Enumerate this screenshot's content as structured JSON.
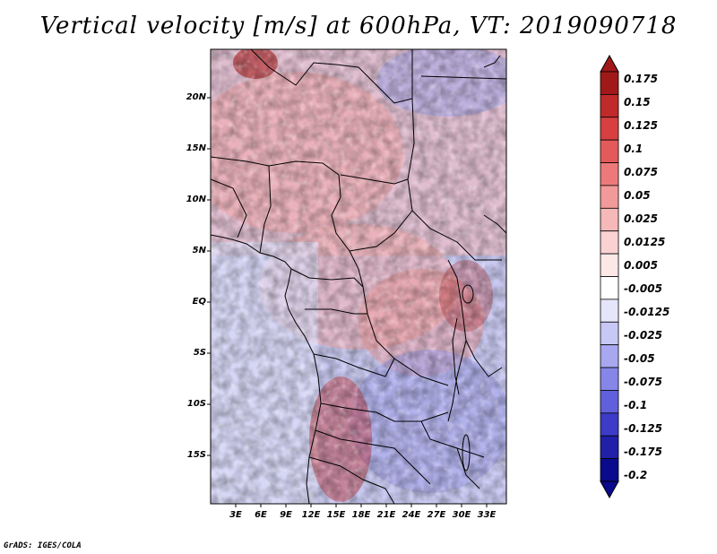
{
  "title": "Vertical velocity [m/s] at 600hPa, VT: 2019090718",
  "credit": "GrADS: IGES/COLA",
  "latitude_labels": [
    "20N",
    "15N",
    "10N",
    "5N",
    "EQ",
    "5S",
    "10S",
    "15S"
  ],
  "longitude_labels": [
    "3E",
    "6E",
    "9E",
    "12E",
    "15E",
    "18E",
    "21E",
    "24E",
    "27E",
    "30E",
    "33E"
  ],
  "colorbar": {
    "levels": [
      "0.175",
      "0.15",
      "0.125",
      "0.1",
      "0.075",
      "0.05",
      "0.025",
      "0.0125",
      "0.005",
      "-0.005",
      "-0.0125",
      "-0.025",
      "-0.05",
      "-0.075",
      "-0.1",
      "-0.125",
      "-0.175",
      "-0.2"
    ],
    "colors": [
      "#a01818",
      "#c02a2a",
      "#d84040",
      "#e45a5a",
      "#ec7a7a",
      "#f29a9a",
      "#f6b8b8",
      "#fad2d2",
      "#fde8e8",
      "#ffffff",
      "#e6e6fb",
      "#c8c8f6",
      "#a8a8f0",
      "#8686e8",
      "#6060dc",
      "#3c3cc8",
      "#2020a8",
      "#0a0a8c"
    ]
  }
}
